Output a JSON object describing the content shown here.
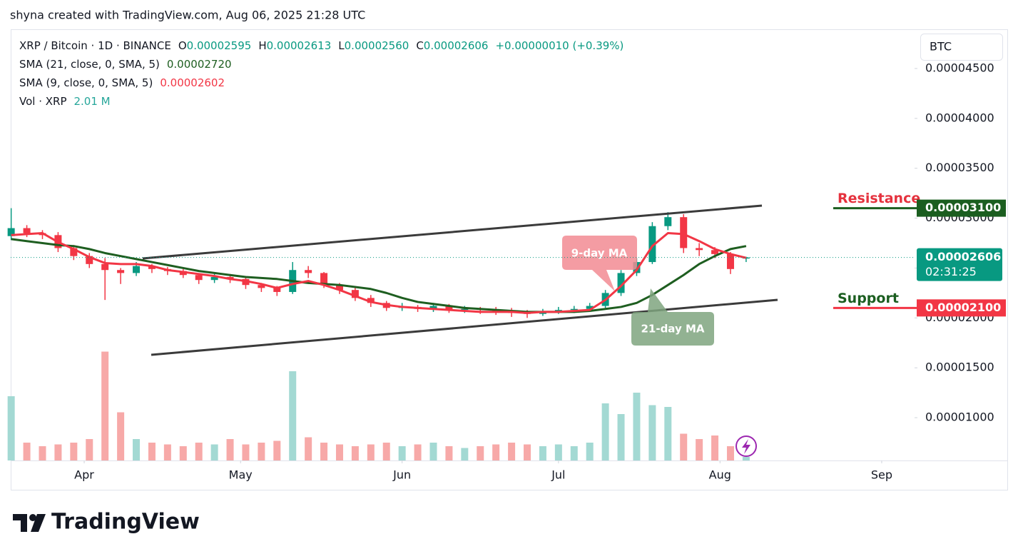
{
  "header": "shyna created with TradingView.com, Aug 06, 2025 21:28 UTC",
  "brand": "TradingView",
  "currency": "BTC",
  "chart_data": {
    "type": "candlestick",
    "legend": {
      "title": "XRP / Bitcoin · 1D · BINANCE",
      "ohlc": [
        {
          "label": "O",
          "value": "0.00002595"
        },
        {
          "label": "H",
          "value": "0.00002613"
        },
        {
          "label": "L",
          "value": "0.00002560"
        },
        {
          "label": "C",
          "value": "0.00002606"
        }
      ],
      "change": "+0.00000010 (+0.39%)"
    },
    "categories": [
      null,
      null,
      null,
      null,
      null,
      null,
      null,
      null,
      null,
      null,
      null,
      null,
      null,
      null,
      null,
      null,
      null,
      null,
      null,
      null,
      null,
      null,
      null,
      null,
      null,
      null,
      null,
      null,
      null,
      null,
      null,
      null,
      null,
      null,
      null,
      null,
      null,
      null,
      null,
      null,
      null,
      null,
      null,
      null,
      null,
      null,
      null,
      null
    ],
    "open": [
      2.82e-05,
      2.9e-05,
      2.85e-05,
      2.83e-05,
      2.7e-05,
      2.62e-05,
      2.54e-05,
      2.48e-05,
      2.45e-05,
      2.52e-05,
      2.49e-05,
      2.47e-05,
      2.43e-05,
      2.38e-05,
      2.41e-05,
      2.39e-05,
      2.33e-05,
      2.3e-05,
      2.26e-05,
      2.48e-05,
      2.45e-05,
      2.33e-05,
      2.28e-05,
      2.2e-05,
      2.15e-05,
      2.1e-05,
      2.11e-05,
      2.09e-05,
      2.12e-05,
      2.08e-05,
      2.09e-05,
      2.08e-05,
      2.07e-05,
      2.05e-05,
      2.04e-05,
      2.07e-05,
      2.08e-05,
      2.09e-05,
      2.12e-05,
      2.25e-05,
      2.45e-05,
      2.56e-05,
      2.92e-05,
      3.01e-05,
      2.7e-05,
      2.68e-05,
      2.64e-05,
      2.595e-05
    ],
    "high": [
      3.1e-05,
      2.93e-05,
      2.88e-05,
      2.86e-05,
      2.73e-05,
      2.65e-05,
      2.6e-05,
      2.5e-05,
      2.56e-05,
      2.54e-05,
      2.51e-05,
      2.49e-05,
      2.45e-05,
      2.44e-05,
      2.44e-05,
      2.42e-05,
      2.35e-05,
      2.32e-05,
      2.56e-05,
      2.52e-05,
      2.46e-05,
      2.35e-05,
      2.3e-05,
      2.23e-05,
      2.17e-05,
      2.15e-05,
      2.13e-05,
      2.15e-05,
      2.14e-05,
      2.12e-05,
      2.11e-05,
      2.11e-05,
      2.1e-05,
      2.08e-05,
      2.09e-05,
      2.11e-05,
      2.12e-05,
      2.15e-05,
      2.28e-05,
      2.48e-05,
      2.6e-05,
      2.96e-05,
      3.06e-05,
      3.04e-05,
      2.75e-05,
      2.71e-05,
      2.66e-05,
      2.613e-05
    ],
    "low": [
      2.78e-05,
      2.81e-05,
      2.79e-05,
      2.66e-05,
      2.58e-05,
      2.5e-05,
      2.18e-05,
      2.34e-05,
      2.42e-05,
      2.45e-05,
      2.43e-05,
      2.4e-05,
      2.34e-05,
      2.35e-05,
      2.35e-05,
      2.29e-05,
      2.26e-05,
      2.22e-05,
      2.24e-05,
      2.4e-05,
      2.3e-05,
      2.24e-05,
      2.17e-05,
      2.11e-05,
      2.07e-05,
      2.07e-05,
      2.06e-05,
      2.06e-05,
      2.05e-05,
      2.05e-05,
      2.04e-05,
      2.03e-05,
      2.01e-05,
      2e-05,
      2.02e-05,
      2.04e-05,
      2.05e-05,
      2.07e-05,
      2.1e-05,
      2.22e-05,
      2.42e-05,
      2.54e-05,
      2.88e-05,
      2.65e-05,
      2.62e-05,
      2.6e-05,
      2.44e-05,
      2.56e-05
    ],
    "close": [
      2.9e-05,
      2.85e-05,
      2.83e-05,
      2.7e-05,
      2.62e-05,
      2.54e-05,
      2.48e-05,
      2.45e-05,
      2.52e-05,
      2.49e-05,
      2.47e-05,
      2.43e-05,
      2.38e-05,
      2.41e-05,
      2.39e-05,
      2.33e-05,
      2.3e-05,
      2.26e-05,
      2.48e-05,
      2.45e-05,
      2.33e-05,
      2.28e-05,
      2.2e-05,
      2.15e-05,
      2.1e-05,
      2.11e-05,
      2.09e-05,
      2.12e-05,
      2.08e-05,
      2.09e-05,
      2.08e-05,
      2.07e-05,
      2.05e-05,
      2.04e-05,
      2.07e-05,
      2.08e-05,
      2.09e-05,
      2.12e-05,
      2.25e-05,
      2.45e-05,
      2.56e-05,
      2.92e-05,
      3.01e-05,
      2.7e-05,
      2.68e-05,
      2.64e-05,
      2.49e-05,
      2.606e-05
    ],
    "up_color": "#089981",
    "down_color": "#f23645",
    "series": [
      {
        "name": "SMA (21, close, 0, SMA, 5)",
        "legend_value": "0.00002720",
        "color": "#1e5e20",
        "values": [
          2.79e-05,
          2.77e-05,
          2.75e-05,
          2.73e-05,
          2.72e-05,
          2.69e-05,
          2.65e-05,
          2.62e-05,
          2.59e-05,
          2.56e-05,
          2.53e-05,
          2.5e-05,
          2.47e-05,
          2.45e-05,
          2.43e-05,
          2.41e-05,
          2.4e-05,
          2.39e-05,
          2.37e-05,
          2.35e-05,
          2.34e-05,
          2.33e-05,
          2.31e-05,
          2.29e-05,
          2.25e-05,
          2.2e-05,
          2.16e-05,
          2.14e-05,
          2.12e-05,
          2.1e-05,
          2.09e-05,
          2.08e-05,
          2.07e-05,
          2.06e-05,
          2.06e-05,
          2.06e-05,
          2.06e-05,
          2.07e-05,
          2.09e-05,
          2.11e-05,
          2.15e-05,
          2.23e-05,
          2.33e-05,
          2.43e-05,
          2.54e-05,
          2.62e-05,
          2.69e-05,
          2.72e-05
        ]
      },
      {
        "name": "SMA (9, close, 0, SMA, 5)",
        "legend_value": "0.00002602",
        "color": "#f23645",
        "values": [
          2.83e-05,
          2.84e-05,
          2.85e-05,
          2.76e-05,
          2.69e-05,
          2.61e-05,
          2.55e-05,
          2.54e-05,
          2.54e-05,
          2.52e-05,
          2.48e-05,
          2.46e-05,
          2.44e-05,
          2.42e-05,
          2.39e-05,
          2.37e-05,
          2.34e-05,
          2.3e-05,
          2.34e-05,
          2.37e-05,
          2.33e-05,
          2.28e-05,
          2.22e-05,
          2.16e-05,
          2.13e-05,
          2.11e-05,
          2.1e-05,
          2.09e-05,
          2.08e-05,
          2.07e-05,
          2.06e-05,
          2.06e-05,
          2.06e-05,
          2.05e-05,
          2.06e-05,
          2.06e-05,
          2.07e-05,
          2.08e-05,
          2.18e-05,
          2.32e-05,
          2.48e-05,
          2.72e-05,
          2.85e-05,
          2.84e-05,
          2.77e-05,
          2.69e-05,
          2.64e-05,
          2.602e-05
        ]
      }
    ],
    "volume": {
      "name": "Vol · XRP",
      "legend_value": "2.01 M",
      "ylim": [
        0,
        80
      ],
      "up_color": "#a3d9d3",
      "down_color": "#f7a9a8",
      "values": [
        36,
        10,
        8,
        9,
        10,
        12,
        61,
        27,
        12,
        10,
        9,
        8,
        10,
        9,
        12,
        9,
        10,
        11,
        50,
        13,
        10,
        9,
        8,
        9,
        10,
        8,
        9,
        10,
        8,
        7,
        8,
        9,
        10,
        9,
        8,
        9,
        8,
        10,
        32,
        26,
        38,
        31,
        30,
        15,
        12,
        14,
        8,
        2.01
      ]
    },
    "xlim": [
      -0.03,
      57.68
    ],
    "xticks": [
      {
        "value": 4.67,
        "label": "Apr"
      },
      {
        "value": 14.67,
        "label": "May"
      },
      {
        "value": 25,
        "label": "Jun"
      },
      {
        "value": 35,
        "label": "Jul"
      },
      {
        "value": 45.33,
        "label": "Aug"
      },
      {
        "value": 55.67,
        "label": "Sep"
      }
    ],
    "ylim": [
      5.71e-06,
      4.886e-05
    ],
    "yticks": [
      {
        "value": 1e-05,
        "label": "0.00001000"
      },
      {
        "value": 1.5e-05,
        "label": "0.00001500"
      },
      {
        "value": 2e-05,
        "label": "0.00002000"
      },
      {
        "value": 2.5e-05,
        "label": "0.00002500"
      },
      {
        "value": 3e-05,
        "label": "0.00003000"
      },
      {
        "value": 3.5e-05,
        "label": "0.00003500"
      },
      {
        "value": 4e-05,
        "label": "0.00004000"
      },
      {
        "value": 4.5e-05,
        "label": "0.00004500"
      }
    ],
    "grid": false,
    "last_price": {
      "value": 2.606e-05,
      "label": "0.00002606",
      "countdown": "02:31:25",
      "color": "#089981"
    },
    "levels": [
      {
        "name": "Resistance",
        "value": 3.1e-05,
        "label": "0.00003100",
        "color": "#1b5e20",
        "text_color": "#e5323e"
      },
      {
        "name": "Support",
        "value": 2.1e-05,
        "label": "0.00002100",
        "color": "#f23645",
        "text_color": "#1b5e20"
      }
    ],
    "annotations": [
      {
        "text": "9-day MA"
      },
      {
        "text": "21-day MA"
      }
    ]
  }
}
